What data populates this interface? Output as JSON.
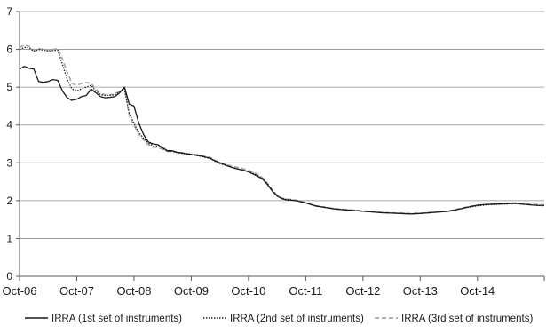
{
  "chart_data": {
    "type": "line",
    "title": "",
    "xlabel": "",
    "ylabel": "",
    "x_ticks": [
      "Oct-06",
      "Oct-07",
      "Oct-08",
      "Oct-09",
      "Oct-10",
      "Oct-11",
      "Oct-12",
      "Oct-13",
      "Oct-14"
    ],
    "y_ticks": [
      0,
      1,
      2,
      3,
      4,
      5,
      6,
      7
    ],
    "ylim": [
      0,
      7
    ],
    "x_range": [
      "Oct-06",
      "Dec-15"
    ],
    "grid": "horizontal",
    "legend_position": "bottom",
    "series": [
      {
        "name": "IRRA (1st set of instruments)",
        "color": "#1a1a1a",
        "style": "solid",
        "points": [
          [
            "Oct-06",
            5.48
          ],
          [
            "Nov-06",
            5.55
          ],
          [
            "Dec-06",
            5.5
          ],
          [
            "Jan-07",
            5.48
          ],
          [
            "Feb-07",
            5.15
          ],
          [
            "Mar-07",
            5.13
          ],
          [
            "Apr-07",
            5.15
          ],
          [
            "May-07",
            5.2
          ],
          [
            "Jun-07",
            5.18
          ],
          [
            "Jul-07",
            4.9
          ],
          [
            "Aug-07",
            4.72
          ],
          [
            "Sep-07",
            4.65
          ],
          [
            "Oct-07",
            4.68
          ],
          [
            "Nov-07",
            4.75
          ],
          [
            "Dec-07",
            4.78
          ],
          [
            "Jan-08",
            4.95
          ],
          [
            "Feb-08",
            4.85
          ],
          [
            "Mar-08",
            4.75
          ],
          [
            "Apr-08",
            4.72
          ],
          [
            "May-08",
            4.73
          ],
          [
            "Jun-08",
            4.75
          ],
          [
            "Jul-08",
            4.85
          ],
          [
            "Aug-08",
            5.0
          ],
          [
            "Sep-08",
            4.55
          ],
          [
            "Oct-08",
            4.5
          ],
          [
            "Nov-08",
            4.05
          ],
          [
            "Dec-08",
            3.75
          ],
          [
            "Jan-09",
            3.55
          ],
          [
            "Feb-09",
            3.5
          ],
          [
            "Mar-09",
            3.48
          ],
          [
            "Apr-09",
            3.4
          ],
          [
            "May-09",
            3.32
          ],
          [
            "Jun-09",
            3.32
          ],
          [
            "Jul-09",
            3.28
          ],
          [
            "Aug-09",
            3.26
          ],
          [
            "Sep-09",
            3.24
          ],
          [
            "Oct-09",
            3.22
          ],
          [
            "Nov-09",
            3.2
          ],
          [
            "Dec-09",
            3.18
          ],
          [
            "Jan-10",
            3.15
          ],
          [
            "Feb-10",
            3.12
          ],
          [
            "Mar-10",
            3.05
          ],
          [
            "Apr-10",
            3.0
          ],
          [
            "May-10",
            2.95
          ],
          [
            "Jun-10",
            2.9
          ],
          [
            "Jul-10",
            2.86
          ],
          [
            "Aug-10",
            2.83
          ],
          [
            "Sep-10",
            2.8
          ],
          [
            "Oct-10",
            2.76
          ],
          [
            "Nov-10",
            2.7
          ],
          [
            "Dec-10",
            2.64
          ],
          [
            "Jan-11",
            2.56
          ],
          [
            "Feb-11",
            2.42
          ],
          [
            "Mar-11",
            2.25
          ],
          [
            "Apr-11",
            2.12
          ],
          [
            "May-11",
            2.05
          ],
          [
            "Jun-11",
            2.02
          ],
          [
            "Jul-11",
            2.01
          ],
          [
            "Aug-11",
            2.0
          ],
          [
            "Sep-11",
            1.97
          ],
          [
            "Oct-11",
            1.94
          ],
          [
            "Nov-11",
            1.9
          ],
          [
            "Dec-11",
            1.86
          ],
          [
            "Feb-12",
            1.82
          ],
          [
            "Apr-12",
            1.78
          ],
          [
            "Jun-12",
            1.76
          ],
          [
            "Aug-12",
            1.74
          ],
          [
            "Oct-12",
            1.72
          ],
          [
            "Dec-12",
            1.7
          ],
          [
            "Feb-13",
            1.68
          ],
          [
            "Apr-13",
            1.67
          ],
          [
            "Jun-13",
            1.66
          ],
          [
            "Aug-13",
            1.65
          ],
          [
            "Oct-13",
            1.66
          ],
          [
            "Dec-13",
            1.68
          ],
          [
            "Feb-14",
            1.7
          ],
          [
            "Apr-14",
            1.72
          ],
          [
            "Jun-14",
            1.77
          ],
          [
            "Aug-14",
            1.83
          ],
          [
            "Oct-14",
            1.88
          ],
          [
            "Dec-14",
            1.9
          ],
          [
            "Feb-15",
            1.91
          ],
          [
            "Apr-15",
            1.92
          ],
          [
            "Jun-15",
            1.93
          ],
          [
            "Aug-15",
            1.9
          ],
          [
            "Oct-15",
            1.88
          ],
          [
            "Dec-15",
            1.87
          ]
        ]
      },
      {
        "name": "IRRA (2nd set of instruments)",
        "color": "#1a1a1a",
        "style": "dotted",
        "points": [
          [
            "Oct-06",
            6.0
          ],
          [
            "Nov-06",
            6.05
          ],
          [
            "Dec-06",
            6.05
          ],
          [
            "Jan-07",
            5.95
          ],
          [
            "Feb-07",
            6.0
          ],
          [
            "Mar-07",
            5.98
          ],
          [
            "Apr-07",
            5.95
          ],
          [
            "May-07",
            5.97
          ],
          [
            "Jun-07",
            5.98
          ],
          [
            "Jul-07",
            5.6
          ],
          [
            "Aug-07",
            5.2
          ],
          [
            "Sep-07",
            4.95
          ],
          [
            "Oct-07",
            4.9
          ],
          [
            "Nov-07",
            4.95
          ],
          [
            "Dec-07",
            5.0
          ],
          [
            "Jan-08",
            5.05
          ],
          [
            "Feb-08",
            4.9
          ],
          [
            "Mar-08",
            4.8
          ],
          [
            "Apr-08",
            4.78
          ],
          [
            "May-08",
            4.78
          ],
          [
            "Jun-08",
            4.8
          ],
          [
            "Jul-08",
            4.88
          ],
          [
            "Aug-08",
            4.95
          ],
          [
            "Sep-08",
            4.3
          ],
          [
            "Oct-08",
            4.05
          ],
          [
            "Nov-08",
            3.8
          ],
          [
            "Dec-08",
            3.65
          ],
          [
            "Jan-09",
            3.52
          ],
          [
            "Feb-09",
            3.45
          ],
          [
            "Mar-09",
            3.43
          ],
          [
            "Apr-09",
            3.38
          ],
          [
            "May-09",
            3.3
          ],
          [
            "Jun-09",
            3.3
          ],
          [
            "Jul-09",
            3.27
          ],
          [
            "Aug-09",
            3.25
          ],
          [
            "Sep-09",
            3.23
          ],
          [
            "Oct-09",
            3.21
          ],
          [
            "Nov-09",
            3.2
          ],
          [
            "Dec-09",
            3.17
          ],
          [
            "Jan-10",
            3.14
          ],
          [
            "Feb-10",
            3.11
          ],
          [
            "Mar-10",
            3.04
          ],
          [
            "Apr-10",
            2.98
          ],
          [
            "May-10",
            2.94
          ],
          [
            "Jun-10",
            2.9
          ],
          [
            "Jul-10",
            2.86
          ],
          [
            "Aug-10",
            2.83
          ],
          [
            "Sep-10",
            2.8
          ],
          [
            "Oct-10",
            2.77
          ],
          [
            "Nov-10",
            2.72
          ],
          [
            "Dec-10",
            2.66
          ],
          [
            "Jan-11",
            2.58
          ],
          [
            "Feb-11",
            2.44
          ],
          [
            "Mar-11",
            2.27
          ],
          [
            "Apr-11",
            2.13
          ],
          [
            "May-11",
            2.06
          ],
          [
            "Jun-11",
            2.03
          ],
          [
            "Jul-11",
            2.02
          ],
          [
            "Aug-11",
            2.0
          ],
          [
            "Sep-11",
            1.97
          ],
          [
            "Oct-11",
            1.94
          ],
          [
            "Nov-11",
            1.9
          ],
          [
            "Dec-11",
            1.86
          ],
          [
            "Feb-12",
            1.82
          ],
          [
            "Apr-12",
            1.78
          ],
          [
            "Jun-12",
            1.76
          ],
          [
            "Aug-12",
            1.74
          ],
          [
            "Oct-12",
            1.72
          ],
          [
            "Dec-12",
            1.7
          ],
          [
            "Feb-13",
            1.68
          ],
          [
            "Apr-13",
            1.67
          ],
          [
            "Jun-13",
            1.66
          ],
          [
            "Aug-13",
            1.65
          ],
          [
            "Oct-13",
            1.66
          ],
          [
            "Dec-13",
            1.68
          ],
          [
            "Feb-14",
            1.7
          ],
          [
            "Apr-14",
            1.72
          ],
          [
            "Jun-14",
            1.77
          ],
          [
            "Aug-14",
            1.82
          ],
          [
            "Oct-14",
            1.86
          ],
          [
            "Dec-14",
            1.89
          ],
          [
            "Feb-15",
            1.9
          ],
          [
            "Apr-15",
            1.91
          ],
          [
            "Jun-15",
            1.92
          ],
          [
            "Aug-15",
            1.9
          ],
          [
            "Oct-15",
            1.88
          ],
          [
            "Dec-15",
            1.86
          ]
        ]
      },
      {
        "name": "IRRA (3rd set of instruments)",
        "color": "#a6a6a6",
        "style": "dashed",
        "points": [
          [
            "Oct-06",
            6.05
          ],
          [
            "Nov-06",
            6.12
          ],
          [
            "Dec-06",
            6.08
          ],
          [
            "Jan-07",
            5.98
          ],
          [
            "Feb-07",
            6.02
          ],
          [
            "Mar-07",
            6.0
          ],
          [
            "Apr-07",
            5.98
          ],
          [
            "May-07",
            6.0
          ],
          [
            "Jun-07",
            6.02
          ],
          [
            "Jul-07",
            5.75
          ],
          [
            "Aug-07",
            5.4
          ],
          [
            "Sep-07",
            5.1
          ],
          [
            "Oct-07",
            5.05
          ],
          [
            "Nov-07",
            5.1
          ],
          [
            "Dec-07",
            5.12
          ],
          [
            "Jan-08",
            5.1
          ],
          [
            "Feb-08",
            4.95
          ],
          [
            "Mar-08",
            4.83
          ],
          [
            "Apr-08",
            4.8
          ],
          [
            "May-08",
            4.8
          ],
          [
            "Jun-08",
            4.82
          ],
          [
            "Jul-08",
            4.9
          ],
          [
            "Aug-08",
            4.98
          ],
          [
            "Sep-08",
            4.25
          ],
          [
            "Oct-08",
            4.0
          ],
          [
            "Nov-08",
            3.75
          ],
          [
            "Dec-08",
            3.6
          ],
          [
            "Jan-09",
            3.48
          ],
          [
            "Feb-09",
            3.42
          ],
          [
            "Mar-09",
            3.4
          ],
          [
            "Apr-09",
            3.36
          ],
          [
            "May-09",
            3.3
          ],
          [
            "Jun-09",
            3.31
          ],
          [
            "Jul-09",
            3.28
          ],
          [
            "Aug-09",
            3.27
          ],
          [
            "Sep-09",
            3.25
          ],
          [
            "Oct-09",
            3.23
          ],
          [
            "Nov-09",
            3.22
          ],
          [
            "Dec-09",
            3.2
          ],
          [
            "Jan-10",
            3.17
          ],
          [
            "Feb-10",
            3.14
          ],
          [
            "Mar-10",
            3.07
          ],
          [
            "Apr-10",
            3.01
          ],
          [
            "May-10",
            2.97
          ],
          [
            "Jun-10",
            2.93
          ],
          [
            "Jul-10",
            2.9
          ],
          [
            "Aug-10",
            2.87
          ],
          [
            "Sep-10",
            2.84
          ],
          [
            "Oct-10",
            2.8
          ],
          [
            "Nov-10",
            2.75
          ],
          [
            "Dec-10",
            2.69
          ],
          [
            "Jan-11",
            2.6
          ],
          [
            "Feb-11",
            2.46
          ],
          [
            "Mar-11",
            2.28
          ],
          [
            "Apr-11",
            2.14
          ],
          [
            "May-11",
            2.07
          ],
          [
            "Jun-11",
            2.04
          ],
          [
            "Jul-11",
            2.03
          ],
          [
            "Aug-11",
            2.01
          ],
          [
            "Sep-11",
            1.98
          ],
          [
            "Oct-11",
            1.95
          ],
          [
            "Nov-11",
            1.91
          ],
          [
            "Dec-11",
            1.87
          ],
          [
            "Feb-12",
            1.83
          ],
          [
            "Apr-12",
            1.79
          ],
          [
            "Jun-12",
            1.77
          ],
          [
            "Aug-12",
            1.75
          ],
          [
            "Oct-12",
            1.73
          ],
          [
            "Dec-12",
            1.71
          ],
          [
            "Feb-13",
            1.69
          ],
          [
            "Apr-13",
            1.68
          ],
          [
            "Jun-13",
            1.67
          ],
          [
            "Aug-13",
            1.66
          ],
          [
            "Oct-13",
            1.67
          ],
          [
            "Dec-13",
            1.69
          ],
          [
            "Feb-14",
            1.71
          ],
          [
            "Apr-14",
            1.73
          ],
          [
            "Jun-14",
            1.78
          ],
          [
            "Aug-14",
            1.84
          ],
          [
            "Oct-14",
            1.88
          ],
          [
            "Dec-14",
            1.9
          ],
          [
            "Feb-15",
            1.92
          ],
          [
            "Apr-15",
            1.93
          ],
          [
            "Jun-15",
            1.94
          ],
          [
            "Aug-15",
            1.92
          ],
          [
            "Oct-15",
            1.9
          ],
          [
            "Dec-15",
            1.89
          ]
        ]
      }
    ]
  }
}
